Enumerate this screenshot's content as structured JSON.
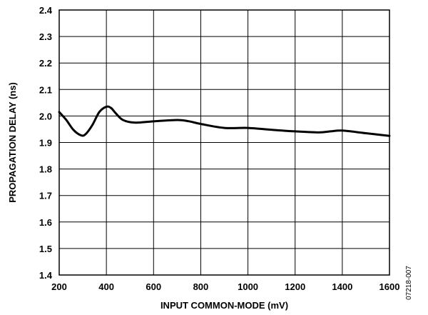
{
  "chart_data": {
    "type": "line",
    "xlabel": "INPUT COMMON-MODE (mV)",
    "ylabel": "PROPAGATION DELAY (ns)",
    "xlim": [
      200,
      1600
    ],
    "ylim": [
      1.4,
      2.4
    ],
    "x_ticks": [
      "200",
      "400",
      "600",
      "800",
      "1000",
      "1200",
      "1400",
      "1600"
    ],
    "y_ticks": [
      "1.4",
      "1.5",
      "1.6",
      "1.7",
      "1.8",
      "1.9",
      "2.0",
      "2.1",
      "2.2",
      "2.3",
      "2.4"
    ],
    "grid": true,
    "series": [
      {
        "x": [
          200,
          230,
          260,
          290,
          310,
          340,
          370,
          400,
          420,
          440,
          470,
          520,
          600,
          700,
          750,
          800,
          900,
          1000,
          1100,
          1200,
          1300,
          1350,
          1400,
          1500,
          1600
        ],
        "y": [
          2.015,
          1.985,
          1.948,
          1.928,
          1.93,
          1.965,
          2.015,
          2.035,
          2.03,
          2.01,
          1.985,
          1.975,
          1.98,
          1.985,
          1.98,
          1.97,
          1.955,
          1.955,
          1.948,
          1.942,
          1.938,
          1.942,
          1.945,
          1.935,
          1.925
        ]
      }
    ]
  },
  "figure_code": "07218-007"
}
